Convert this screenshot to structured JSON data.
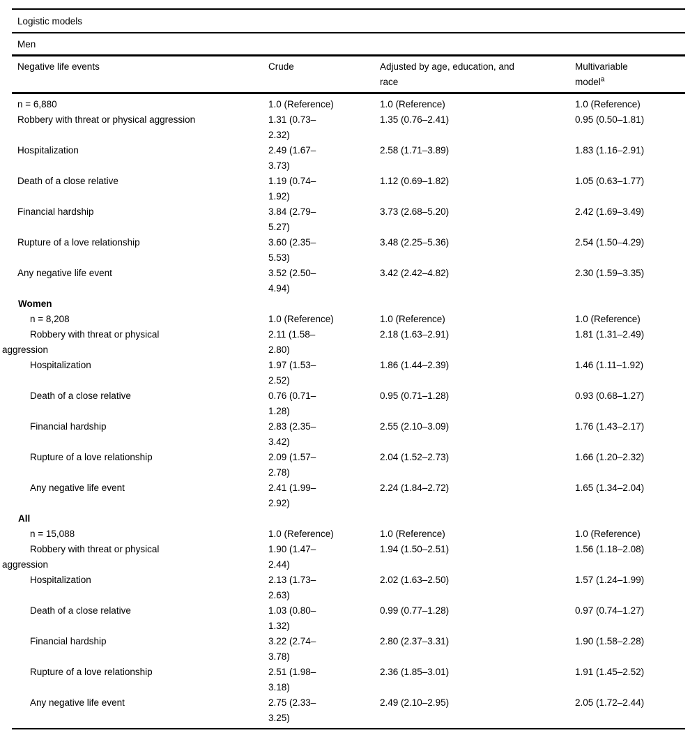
{
  "header": {
    "table_title": "Logistic models",
    "group_banner": "Men",
    "columns": {
      "events": "Negative life events",
      "crude": "Crude",
      "adjusted": "Adjusted by age, education, and\nrace",
      "multivariable_line1": "Multivariable",
      "multivariable_line2": "model",
      "footnote_marker": "a"
    }
  },
  "men": {
    "rows": [
      {
        "label": "n = 6,880",
        "crude": "1.0 (Reference)",
        "adjusted": "1.0 (Reference)",
        "multivariable": "1.0 (Reference)"
      },
      {
        "label": "Robbery with threat or physical aggression",
        "crude": "1.31 (0.73–\n2.32)",
        "adjusted": "1.35 (0.76–2.41)",
        "multivariable": "0.95 (0.50–1.81)"
      },
      {
        "label": "Hospitalization",
        "crude": "2.49 (1.67–\n3.73)",
        "adjusted": "2.58 (1.71–3.89)",
        "multivariable": "1.83 (1.16–2.91)"
      },
      {
        "label": "Death of a close relative",
        "crude": "1.19 (0.74–\n1.92)",
        "adjusted": "1.12 (0.69–1.82)",
        "multivariable": "1.05 (0.63–1.77)"
      },
      {
        "label": "Financial hardship",
        "crude": "3.84 (2.79–\n5.27)",
        "adjusted": "3.73 (2.68–5.20)",
        "multivariable": "2.42 (1.69–3.49)"
      },
      {
        "label": "Rupture of a love relationship",
        "crude": "3.60 (2.35–\n5.53)",
        "adjusted": "3.48 (2.25–5.36)",
        "multivariable": "2.54 (1.50–4.29)"
      },
      {
        "label": "Any negative life event",
        "crude": "3.52 (2.50–\n4.94)",
        "adjusted": "3.42 (2.42–4.82)",
        "multivariable": "2.30 (1.59–3.35)"
      }
    ]
  },
  "women": {
    "section_label": "Women",
    "rows": [
      {
        "label": "n = 8,208",
        "crude": "1.0 (Reference)",
        "adjusted": "1.0 (Reference)",
        "multivariable": "1.0 (Reference)"
      },
      {
        "label": "Robbery with threat or physical\naggression",
        "crude": "2.11 (1.58–\n2.80)",
        "adjusted": "2.18 (1.63–2.91)",
        "multivariable": "1.81 (1.31–2.49)"
      },
      {
        "label": "Hospitalization",
        "crude": "1.97 (1.53–\n2.52)",
        "adjusted": "1.86 (1.44–2.39)",
        "multivariable": "1.46 (1.11–1.92)"
      },
      {
        "label": "Death of a close relative",
        "crude": "0.76 (0.71–\n1.28)",
        "adjusted": "0.95 (0.71–1.28)",
        "multivariable": "0.93 (0.68–1.27)"
      },
      {
        "label": "Financial hardship",
        "crude": "2.83 (2.35–\n3.42)",
        "adjusted": "2.55 (2.10–3.09)",
        "multivariable": "1.76 (1.43–2.17)"
      },
      {
        "label": "Rupture of a love relationship",
        "crude": "2.09 (1.57–\n2.78)",
        "adjusted": "2.04 (1.52–2.73)",
        "multivariable": "1.66 (1.20–2.32)"
      },
      {
        "label": "Any negative life event",
        "crude": "2.41 (1.99–\n2.92)",
        "adjusted": "2.24 (1.84–2.72)",
        "multivariable": "1.65 (1.34–2.04)"
      }
    ]
  },
  "all": {
    "section_label": "All",
    "rows": [
      {
        "label": "n = 15,088",
        "crude": "1.0 (Reference)",
        "adjusted": "1.0 (Reference)",
        "multivariable": "1.0 (Reference)"
      },
      {
        "label": "Robbery with threat or physical\naggression",
        "crude": "1.90 (1.47–\n2.44)",
        "adjusted": "1.94 (1.50–2.51)",
        "multivariable": "1.56 (1.18–2.08)"
      },
      {
        "label": "Hospitalization",
        "crude": "2.13 (1.73–\n2.63)",
        "adjusted": "2.02 (1.63–2.50)",
        "multivariable": "1.57 (1.24–1.99)"
      },
      {
        "label": "Death of a close relative",
        "crude": "1.03 (0.80–\n1.32)",
        "adjusted": "0.99 (0.77–1.28)",
        "multivariable": "0.97 (0.74–1.27)"
      },
      {
        "label": "Financial hardship",
        "crude": "3.22 (2.74–\n3.78)",
        "adjusted": "2.80 (2.37–3.31)",
        "multivariable": "1.90 (1.58–2.28)"
      },
      {
        "label": "Rupture of a love relationship",
        "crude": "2.51 (1.98–\n3.18)",
        "adjusted": "2.36 (1.85–3.01)",
        "multivariable": "1.91 (1.45–2.52)"
      },
      {
        "label": "Any negative life event",
        "crude": "2.75 (2.33–\n3.25)",
        "adjusted": "2.49 (2.10–2.95)",
        "multivariable": "2.05 (1.72–2.44)"
      }
    ]
  }
}
